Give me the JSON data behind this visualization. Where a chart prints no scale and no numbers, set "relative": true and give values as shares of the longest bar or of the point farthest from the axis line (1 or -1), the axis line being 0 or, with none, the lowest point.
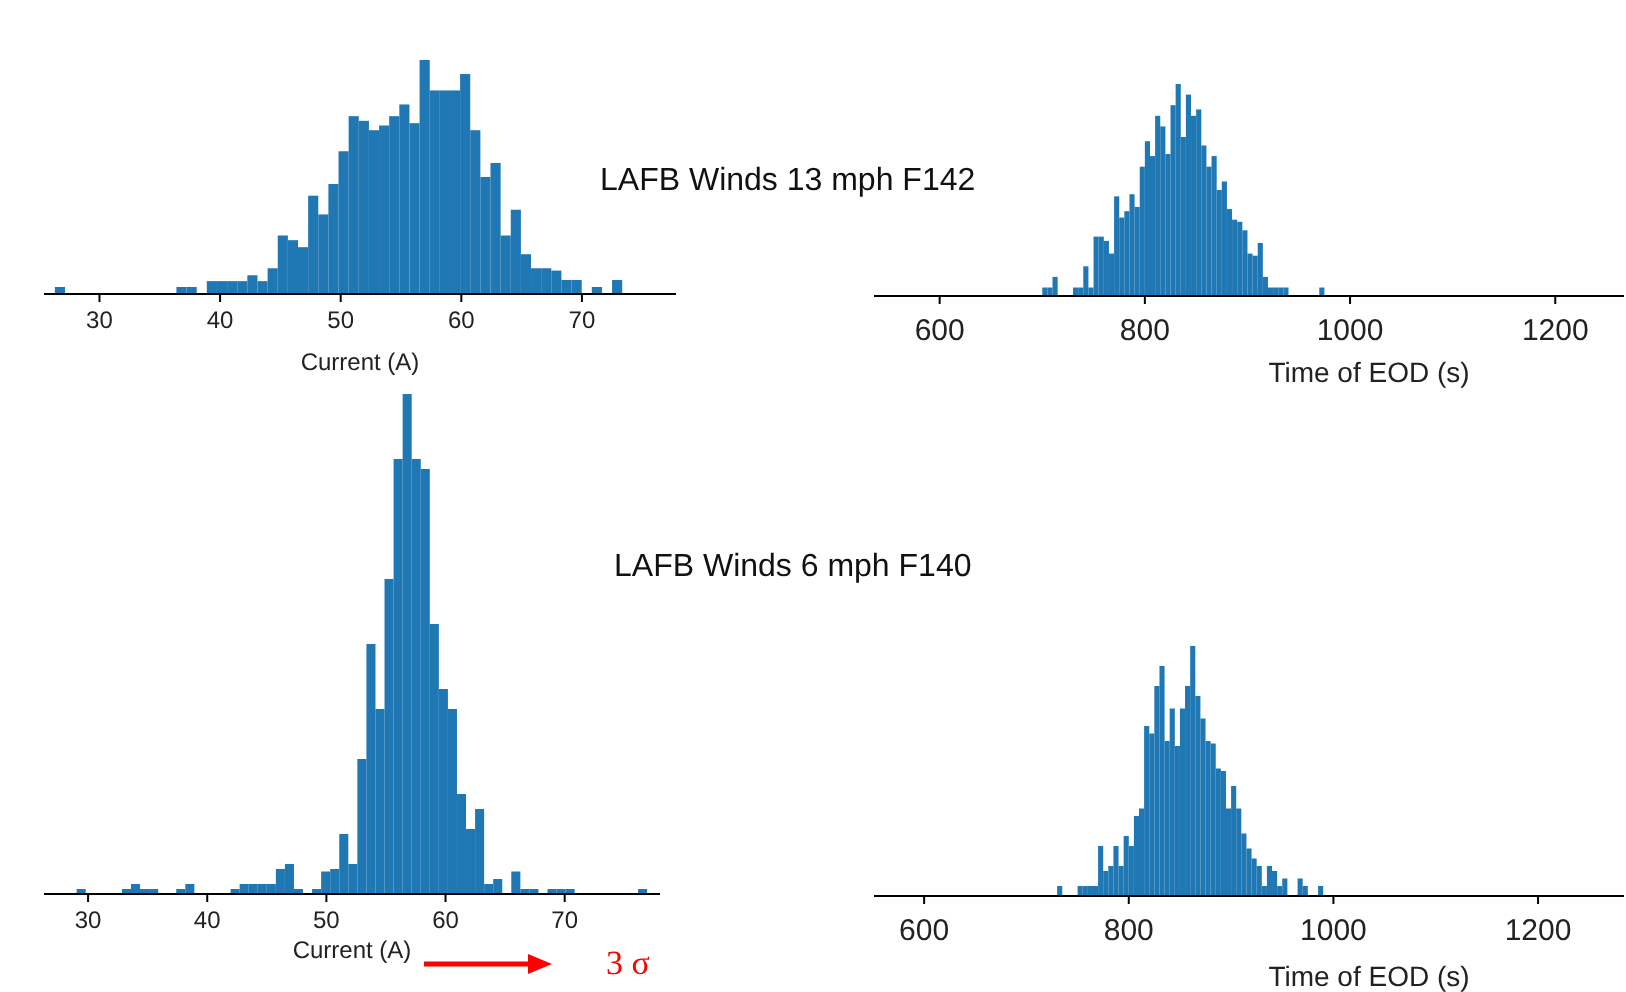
{
  "chart_data": [
    {
      "type": "bar",
      "title": "LAFB Winds 13 mph F142",
      "xlabel": "Current (A)",
      "relative": true,
      "color": "#1f77b4",
      "xlim": [
        25.4,
        77.8
      ],
      "xticks": [
        30,
        40,
        50,
        60,
        70
      ],
      "x": [
        26.72,
        27.56,
        28.4,
        29.24,
        30.08,
        30.92,
        31.76,
        32.6,
        33.44,
        34.28,
        35.12,
        35.96,
        36.8,
        37.64,
        38.48,
        39.32,
        40.16,
        41.0,
        41.84,
        42.68,
        43.52,
        44.36,
        45.2,
        46.04,
        46.88,
        47.72,
        48.56,
        49.4,
        50.24,
        51.08,
        51.92,
        52.76,
        53.6,
        54.44,
        55.28,
        56.12,
        56.96,
        57.8,
        58.64,
        59.48,
        60.32,
        61.16,
        62.0,
        62.84,
        63.68,
        64.52,
        65.36,
        66.2,
        67.04,
        67.88,
        68.72,
        69.56,
        70.4,
        71.24,
        72.08,
        72.92
      ],
      "values": [
        0.03,
        0,
        0,
        0,
        0,
        0,
        0,
        0,
        0,
        0,
        0,
        0,
        0.03,
        0.03,
        0,
        0.055,
        0.055,
        0.055,
        0.055,
        0.08,
        0.055,
        0.11,
        0.25,
        0.23,
        0.2,
        0.42,
        0.34,
        0.47,
        0.61,
        0.76,
        0.74,
        0.7,
        0.72,
        0.76,
        0.81,
        0.73,
        1.0,
        0.87,
        0.87,
        0.87,
        0.94,
        0.7,
        0.5,
        0.56,
        0.25,
        0.36,
        0.17,
        0.11,
        0.11,
        0.1,
        0.06,
        0.06,
        0,
        0.03,
        0,
        0.06
      ]
    },
    {
      "type": "bar",
      "xlabel": "Time of EOD (s)",
      "relative": true,
      "color": "#1f77b4",
      "xlim": [
        536,
        1267
      ],
      "xticks": [
        600,
        800,
        1000,
        1200
      ],
      "x": [
        702.5,
        707.5,
        712.5,
        717.5,
        722.5,
        727.5,
        732.5,
        737.5,
        742.5,
        747.5,
        752.5,
        757.5,
        762.5,
        767.5,
        772.5,
        777.5,
        782.5,
        787.5,
        792.5,
        797.5,
        802.5,
        807.5,
        812.5,
        817.5,
        822.5,
        827.5,
        832.5,
        837.5,
        842.5,
        847.5,
        852.5,
        857.5,
        862.5,
        867.5,
        872.5,
        877.5,
        882.5,
        887.5,
        892.5,
        897.5,
        902.5,
        907.5,
        912.5,
        917.5,
        922.5,
        927.5,
        932.5,
        937.5,
        942.5,
        947.5,
        952.5,
        957.5,
        962.5,
        967.5,
        972.5
      ],
      "values": [
        0.04,
        0.04,
        0.09,
        0,
        0,
        0,
        0.04,
        0.04,
        0.14,
        0.04,
        0.28,
        0.28,
        0.26,
        0.2,
        0.47,
        0.37,
        0.4,
        0.48,
        0.42,
        0.61,
        0.73,
        0.66,
        0.85,
        0.8,
        0.67,
        0.9,
        1.0,
        0.75,
        0.95,
        0.85,
        0.88,
        0.71,
        0.61,
        0.66,
        0.5,
        0.54,
        0.41,
        0.36,
        0.35,
        0.31,
        0.2,
        0.19,
        0.25,
        0.09,
        0.04,
        0.04,
        0.04,
        0.04,
        0,
        0,
        0,
        0,
        0,
        0,
        0.04
      ]
    },
    {
      "type": "bar",
      "title": "LAFB Winds 6 mph F140",
      "xlabel": "Current (A)",
      "relative": true,
      "color": "#1f77b4",
      "xlim": [
        26.3,
        78.0
      ],
      "xticks": [
        30,
        40,
        50,
        60,
        70
      ],
      "annotations": [
        "3 σ"
      ],
      "x": [
        29.42,
        30.18,
        30.94,
        31.7,
        32.46,
        33.22,
        33.98,
        34.74,
        35.5,
        36.26,
        37.02,
        37.78,
        38.54,
        39.3,
        40.06,
        40.82,
        41.58,
        42.34,
        43.1,
        43.86,
        44.62,
        45.38,
        46.14,
        46.9,
        47.66,
        48.42,
        49.18,
        49.94,
        50.7,
        51.46,
        52.22,
        52.98,
        53.74,
        54.5,
        55.26,
        56.02,
        56.78,
        57.54,
        58.3,
        59.06,
        59.82,
        60.58,
        61.34,
        62.1,
        62.86,
        63.62,
        64.38,
        65.14,
        65.9,
        66.66,
        67.42,
        68.18,
        68.94,
        69.7,
        70.46,
        71.22,
        71.98,
        72.74,
        73.5,
        74.26,
        75.02,
        75.78,
        76.54
      ],
      "values": [
        0.01,
        0,
        0,
        0,
        0,
        0.01,
        0.02,
        0.01,
        0.01,
        0,
        0,
        0.01,
        0.02,
        0,
        0,
        0,
        0,
        0.01,
        0.02,
        0.02,
        0.02,
        0.02,
        0.05,
        0.06,
        0.01,
        0,
        0.01,
        0.045,
        0.05,
        0.12,
        0.06,
        0.27,
        0.5,
        0.37,
        0.63,
        0.87,
        1.0,
        0.87,
        0.85,
        0.54,
        0.41,
        0.37,
        0.2,
        0.13,
        0.17,
        0.02,
        0.03,
        0,
        0.045,
        0.01,
        0.01,
        0,
        0.01,
        0.01,
        0.01,
        0,
        0,
        0,
        0,
        0,
        0,
        0,
        0.01
      ]
    },
    {
      "type": "bar",
      "xlabel": "Time of EOD (s)",
      "relative": true,
      "color": "#1f77b4",
      "xlim": [
        551,
        1284
      ],
      "xticks": [
        600,
        800,
        1000,
        1200
      ],
      "x": [
        732.5,
        737.5,
        742.5,
        747.5,
        752.5,
        757.5,
        762.5,
        767.5,
        772.5,
        777.5,
        782.5,
        787.5,
        792.5,
        797.5,
        802.5,
        807.5,
        812.5,
        817.5,
        822.5,
        827.5,
        832.5,
        837.5,
        842.5,
        847.5,
        852.5,
        857.5,
        862.5,
        867.5,
        872.5,
        877.5,
        882.5,
        887.5,
        892.5,
        897.5,
        902.5,
        907.5,
        912.5,
        917.5,
        922.5,
        927.5,
        932.5,
        937.5,
        942.5,
        947.5,
        952.5,
        957.5,
        962.5,
        967.5,
        972.5,
        977.5,
        982.5,
        987.5
      ],
      "values": [
        0.04,
        0,
        0,
        0,
        0.04,
        0.04,
        0.04,
        0.04,
        0.2,
        0.1,
        0.12,
        0.2,
        0.12,
        0.24,
        0.2,
        0.32,
        0.35,
        0.68,
        0.65,
        0.84,
        0.92,
        0.62,
        0.75,
        0.6,
        0.75,
        0.84,
        1.0,
        0.8,
        0.71,
        0.62,
        0.61,
        0.51,
        0.5,
        0.35,
        0.44,
        0.35,
        0.25,
        0.19,
        0.15,
        0.12,
        0.04,
        0.12,
        0.1,
        0.04,
        0.07,
        0,
        0,
        0.07,
        0.04,
        0,
        0,
        0.04
      ]
    }
  ]
}
